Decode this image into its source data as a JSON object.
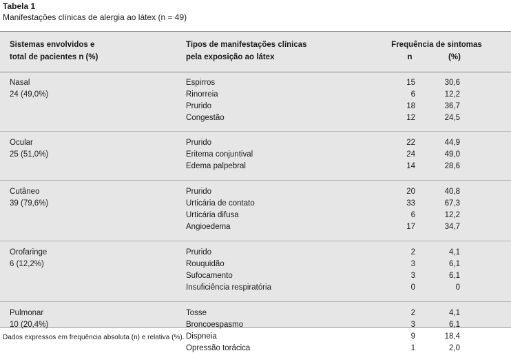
{
  "caption": {
    "title": "Tabela 1",
    "subtitle": "Manifestações clínicas de alergia ao látex (n = 49)"
  },
  "header": {
    "col1_line1": "Sistemas envolvidos e",
    "col1_line2": "total de pacientes n (%)",
    "col2_line1": "Tipos de manifestações clínicas",
    "col2_line2": "pela exposição ao látex",
    "col3_line1": "Frequência de sintomas",
    "col3_n": "n",
    "col3_pct": "(%)"
  },
  "groups": [
    {
      "system": "Nasal",
      "total": "24 (49,0%)",
      "rows": [
        {
          "label": "Espirros",
          "n": "15",
          "pct": "30,6"
        },
        {
          "label": "Rinorreia",
          "n": "6",
          "pct": "12,2"
        },
        {
          "label": "Prurido",
          "n": "18",
          "pct": "36,7"
        },
        {
          "label": "Congestão",
          "n": "12",
          "pct": "24,5"
        }
      ]
    },
    {
      "system": "Ocular",
      "total": "25 (51,0%)",
      "rows": [
        {
          "label": "Prurido",
          "n": "22",
          "pct": "44,9"
        },
        {
          "label": "Eritema conjuntival",
          "n": "24",
          "pct": "49,0"
        },
        {
          "label": "Edema palpebral",
          "n": "14",
          "pct": "28,6"
        }
      ]
    },
    {
      "system": "Cutâneo",
      "total": "39 (79,6%)",
      "rows": [
        {
          "label": "Prurido",
          "n": "20",
          "pct": "40,8"
        },
        {
          "label": "Urticária de contato",
          "n": "33",
          "pct": "67,3"
        },
        {
          "label": "Urticária difusa",
          "n": "6",
          "pct": "12,2"
        },
        {
          "label": "Angioedema",
          "n": "17",
          "pct": "34,7"
        }
      ]
    },
    {
      "system": "Orofaringe",
      "total": "6 (12,2%)",
      "rows": [
        {
          "label": "Prurido",
          "n": "2",
          "pct": "4,1"
        },
        {
          "label": "Rouquidão",
          "n": "3",
          "pct": "6,1"
        },
        {
          "label": "Sufocamento",
          "n": "3",
          "pct": "6,1"
        },
        {
          "label": "Insuficiência respiratória",
          "n": "0",
          "pct": "0"
        }
      ]
    },
    {
      "system": "Pulmonar",
      "total": "10 (20,4%)",
      "rows": [
        {
          "label": "Tosse",
          "n": "2",
          "pct": "4,1"
        },
        {
          "label": "Broncoespasmo",
          "n": "3",
          "pct": "6,1"
        },
        {
          "label": "Dispneia",
          "n": "9",
          "pct": "18,4"
        },
        {
          "label": "Opressão torácica",
          "n": "1",
          "pct": "2,0"
        }
      ]
    }
  ],
  "footnote": "Dados expressos em frequência absoluta (n) e relativa (%)."
}
